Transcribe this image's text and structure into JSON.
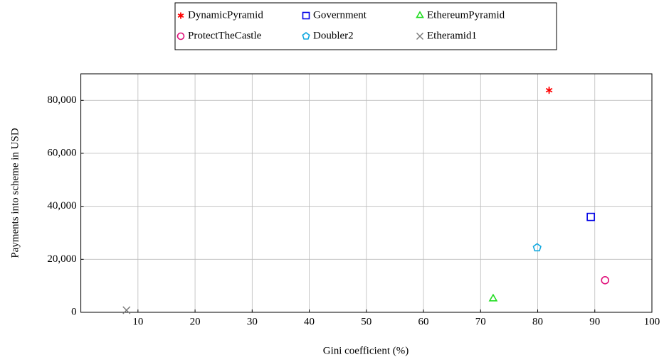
{
  "chart_data": {
    "type": "scatter",
    "x_label": "Gini coefficient (%)",
    "y_label": "Payments into scheme in USD",
    "xlim": [
      0,
      100
    ],
    "xticks": [
      10,
      20,
      30,
      40,
      50,
      60,
      70,
      80,
      90,
      100
    ],
    "ylim": [
      0,
      90000
    ],
    "yticks": [
      0,
      {
        "value": 20000,
        "label": "20,000"
      },
      {
        "value": 40000,
        "label": "40,000"
      },
      {
        "value": 60000,
        "label": "60,000"
      },
      {
        "value": 80000,
        "label": "80,000"
      }
    ],
    "grid": true,
    "legend": "top",
    "series": [
      {
        "name": "DynamicPyramid",
        "color": "#ff0000",
        "marker": "star",
        "x": [
          82.0
        ],
        "values": [
          83800
        ]
      },
      {
        "name": "Government",
        "color": "#0000e6",
        "marker": "square",
        "x": [
          89.3
        ],
        "values": [
          36000
        ]
      },
      {
        "name": "EthereumPyramid",
        "color": "#22dd22",
        "marker": "triangle",
        "x": [
          72.2
        ],
        "values": [
          5100
        ]
      },
      {
        "name": "ProtectTheCastle",
        "color": "#e0107a",
        "marker": "circle",
        "x": [
          91.8
        ],
        "values": [
          12100
        ]
      },
      {
        "name": "Doubler2",
        "color": "#10a8e0",
        "marker": "pentagon",
        "x": [
          79.9
        ],
        "values": [
          24400
        ]
      },
      {
        "name": "Etheramid1",
        "color": "#777777",
        "marker": "cross",
        "x": [
          8.0
        ],
        "values": [
          800
        ]
      }
    ]
  }
}
